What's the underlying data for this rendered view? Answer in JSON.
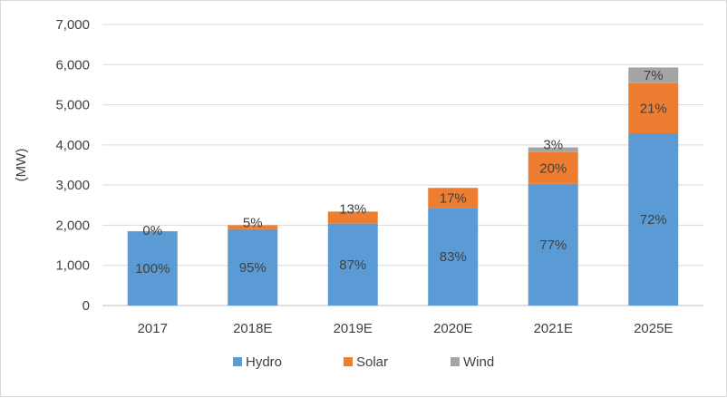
{
  "chart_data": {
    "type": "bar",
    "stacked": true,
    "categories": [
      "2017",
      "2018E",
      "2019E",
      "2020E",
      "2021E",
      "2025E"
    ],
    "series": [
      {
        "name": "Hydro",
        "color": "#5b9bd5",
        "values": [
          1850,
          1900,
          2040,
          2430,
          3030,
          4290
        ],
        "labels": [
          "100%",
          "95%",
          "87%",
          "83%",
          "77%",
          "72%"
        ]
      },
      {
        "name": "Solar",
        "color": "#ed7d31",
        "values": [
          0,
          100,
          300,
          500,
          790,
          1250
        ],
        "labels": [
          "0%",
          "5%",
          "13%",
          "17%",
          "20%",
          "21%"
        ]
      },
      {
        "name": "Wind",
        "color": "#a5a5a5",
        "values": [
          0,
          0,
          0,
          0,
          120,
          390
        ],
        "labels": [
          "",
          "",
          "",
          "",
          "3%",
          "7%"
        ]
      }
    ],
    "ylabel": "(MW)",
    "ylim": [
      0,
      7000
    ],
    "yticks": [
      "0",
      "1,000",
      "2,000",
      "3,000",
      "4,000",
      "5,000",
      "6,000",
      "7,000"
    ],
    "grid": true,
    "legend": "bottom"
  }
}
